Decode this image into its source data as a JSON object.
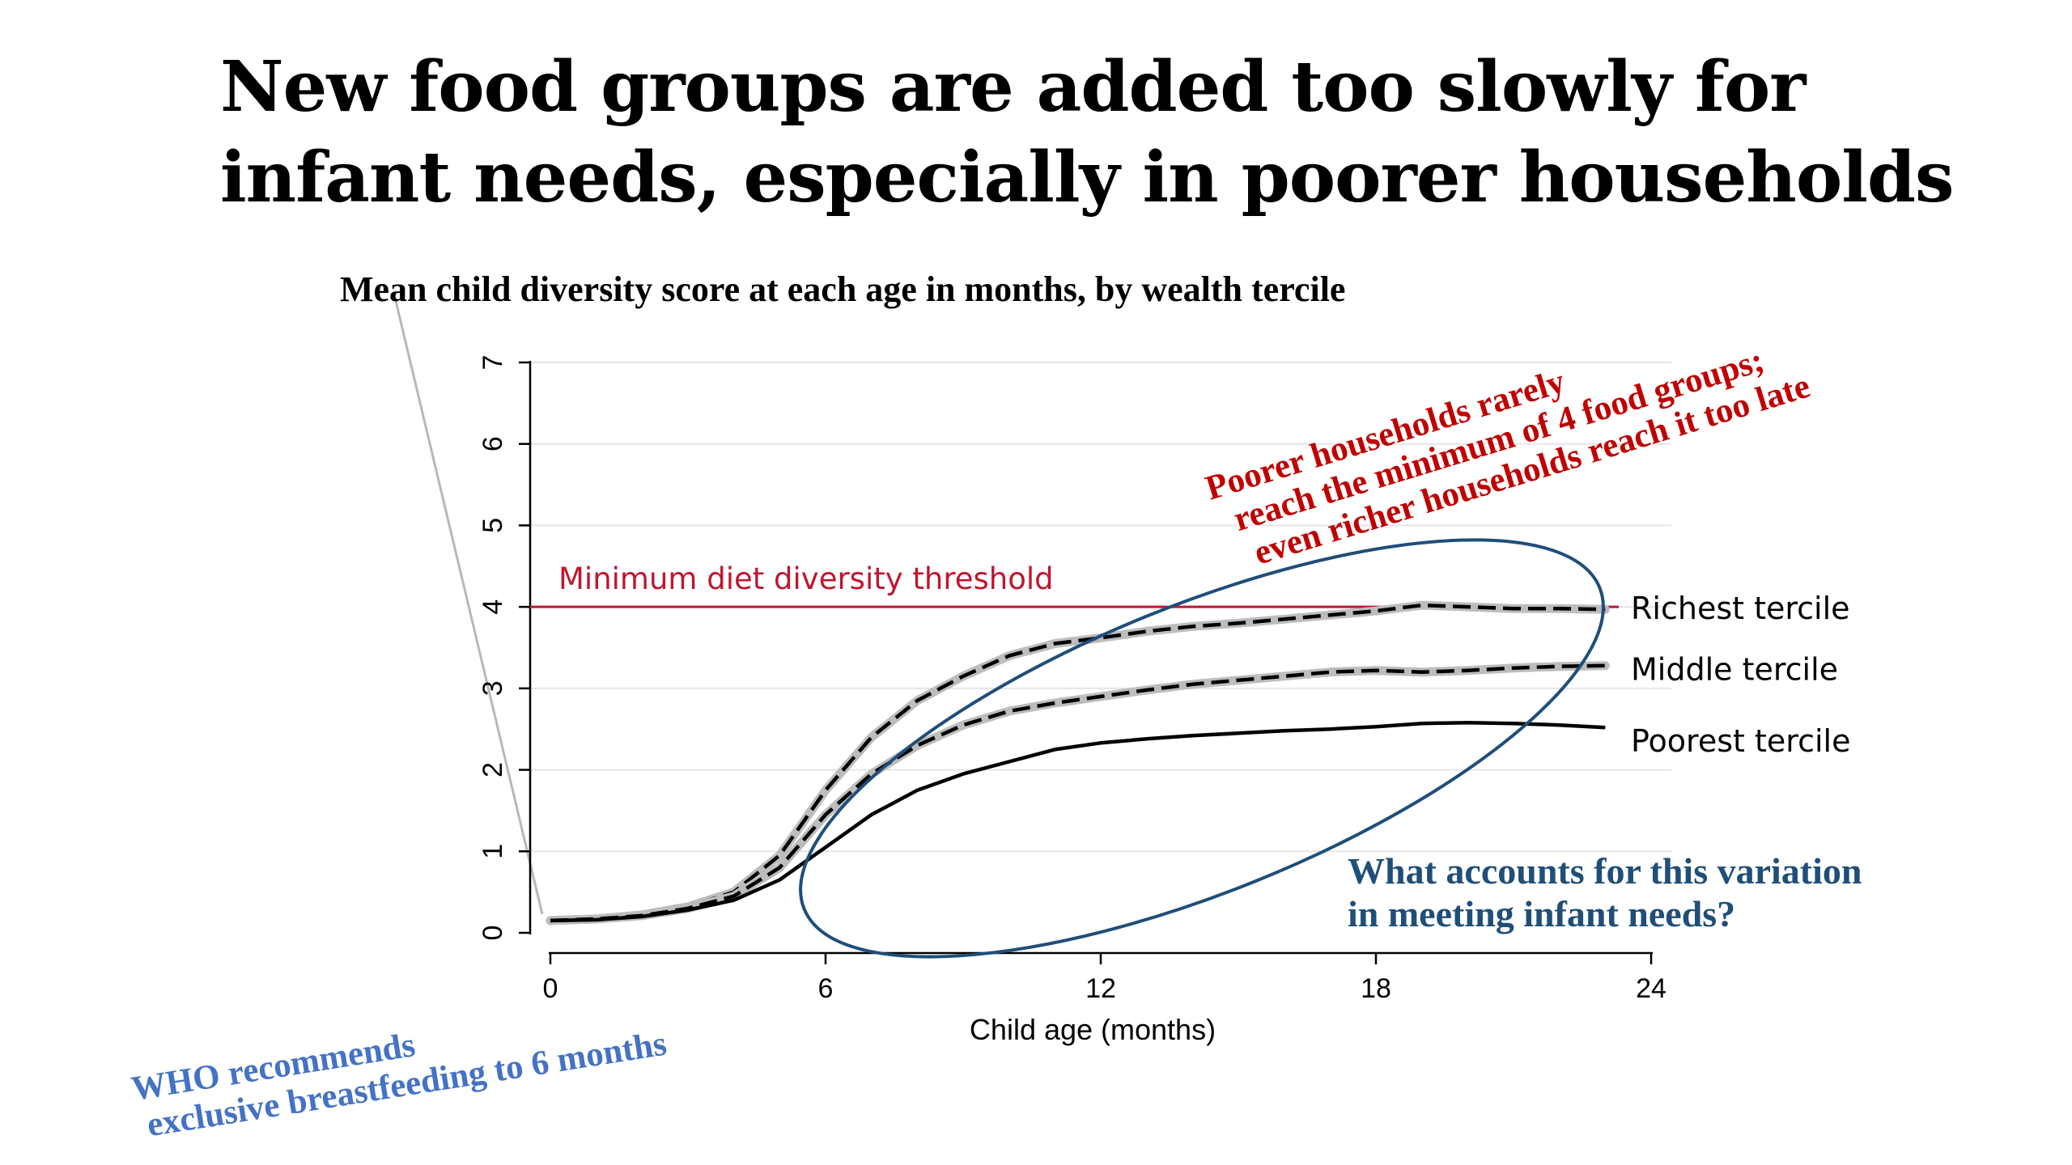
{
  "slide": {
    "title_line1": "New food groups are added too slowly for",
    "title_line2": "infant needs, especially in poorer households"
  },
  "annotations": {
    "poorer_line1": "Poorer households rarely",
    "poorer_line2": "reach the minimum of 4 food groups;",
    "poorer_line3": "even richer households reach it too late",
    "question_line1": "What accounts for this variation",
    "question_line2": "in meeting infant needs?",
    "who_line1": "WHO recommends",
    "who_line2": "exclusive breastfeeding to 6 months"
  },
  "colors": {
    "threshold": "#c0152f",
    "annotation_red": "#c00000",
    "annotation_blue": "#1f4e79",
    "annotation_light_blue": "#4472c4",
    "ellipse": "#1f4e79",
    "series_line": "#000000",
    "series_halo": "#bdbdbd",
    "grid": "#e6e6e6"
  },
  "chart_data": {
    "type": "line",
    "title": "Mean child diversity score at each age in months, by wealth tercile",
    "xlabel": "Child age (months)",
    "ylabel": "",
    "xlim": [
      0,
      24
    ],
    "ylim": [
      0,
      7
    ],
    "xticks": [
      0,
      6,
      12,
      18,
      24
    ],
    "yticks": [
      0,
      1,
      2,
      3,
      4,
      5,
      6,
      7
    ],
    "grid": true,
    "threshold": {
      "value": 4,
      "label": "Minimum diet diversity threshold"
    },
    "x": [
      0,
      1,
      2,
      3,
      4,
      5,
      6,
      7,
      8,
      9,
      10,
      11,
      12,
      13,
      14,
      15,
      16,
      17,
      18,
      19,
      20,
      21,
      22,
      23
    ],
    "series": [
      {
        "name": "Richest tercile",
        "style": "dashed",
        "values": [
          0.15,
          0.17,
          0.22,
          0.32,
          0.5,
          0.95,
          1.75,
          2.4,
          2.85,
          3.15,
          3.4,
          3.55,
          3.62,
          3.7,
          3.76,
          3.8,
          3.85,
          3.9,
          3.95,
          4.02,
          4.0,
          3.98,
          3.98,
          3.97
        ]
      },
      {
        "name": "Middle tercile",
        "style": "dashed",
        "values": [
          0.15,
          0.17,
          0.21,
          0.3,
          0.45,
          0.8,
          1.45,
          1.95,
          2.3,
          2.55,
          2.72,
          2.82,
          2.9,
          2.98,
          3.05,
          3.1,
          3.15,
          3.2,
          3.22,
          3.2,
          3.22,
          3.25,
          3.27,
          3.28
        ]
      },
      {
        "name": "Poorest tercile",
        "style": "solid",
        "values": [
          0.15,
          0.16,
          0.2,
          0.28,
          0.4,
          0.65,
          1.05,
          1.45,
          1.75,
          1.95,
          2.1,
          2.25,
          2.33,
          2.38,
          2.42,
          2.45,
          2.48,
          2.5,
          2.53,
          2.57,
          2.58,
          2.57,
          2.55,
          2.52
        ]
      }
    ]
  }
}
